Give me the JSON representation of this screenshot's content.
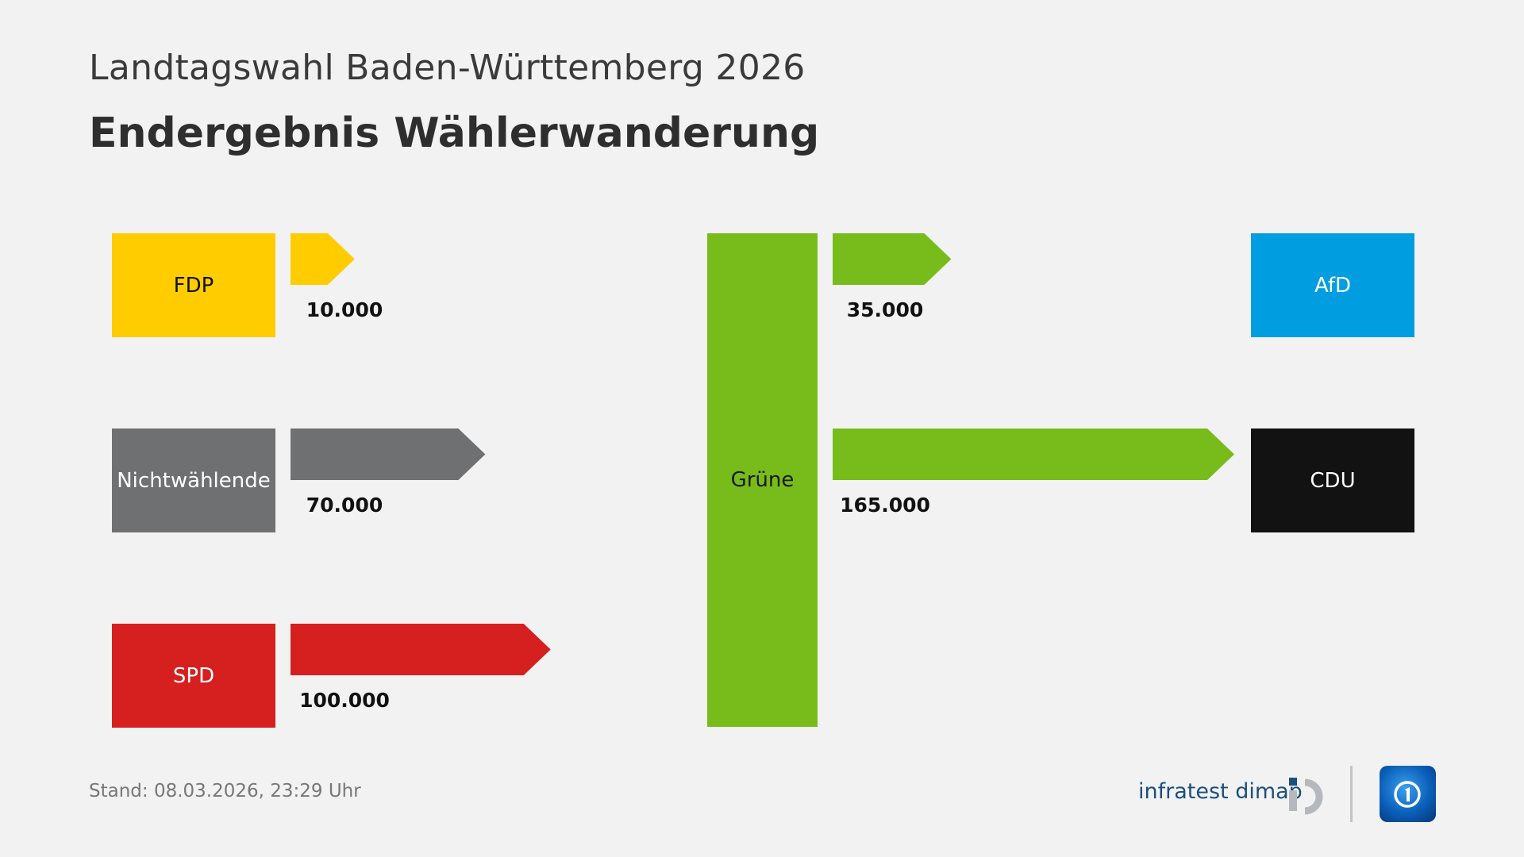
{
  "header": {
    "subtitle": "Landtagswahl Baden-Württemberg 2026",
    "title": "Endergebnis Wählerwanderung"
  },
  "chart_data": {
    "type": "flow",
    "target": {
      "name": "Grüne",
      "color": "#78bc1b"
    },
    "inflows": [
      {
        "from": "FDP",
        "value": 10000,
        "label": "10.000",
        "color": "#ffcc00",
        "text_color": "#111111"
      },
      {
        "from": "Nichtwählende",
        "value": 70000,
        "label": "70.000",
        "color": "#6f7072",
        "text_color": "#ffffff"
      },
      {
        "from": "SPD",
        "value": 100000,
        "label": "100.000",
        "color": "#d61f1f",
        "text_color": "#ffffff"
      }
    ],
    "outflows": [
      {
        "to": "AfD",
        "value": 35000,
        "label": "35.000",
        "color": "#009ee0",
        "text_color": "#ffffff"
      },
      {
        "to": "CDU",
        "value": 165000,
        "label": "165.000",
        "color": "#121212",
        "text_color": "#ffffff"
      }
    ]
  },
  "footer": {
    "stand": "Stand:  08.03.2026, 23:29 Uhr",
    "source_logo": "infratest dimap",
    "broadcaster_logo": "tagesschau-icon"
  },
  "colors": {
    "background": "#f2f2f2",
    "flow_out": "#78bc1b"
  }
}
